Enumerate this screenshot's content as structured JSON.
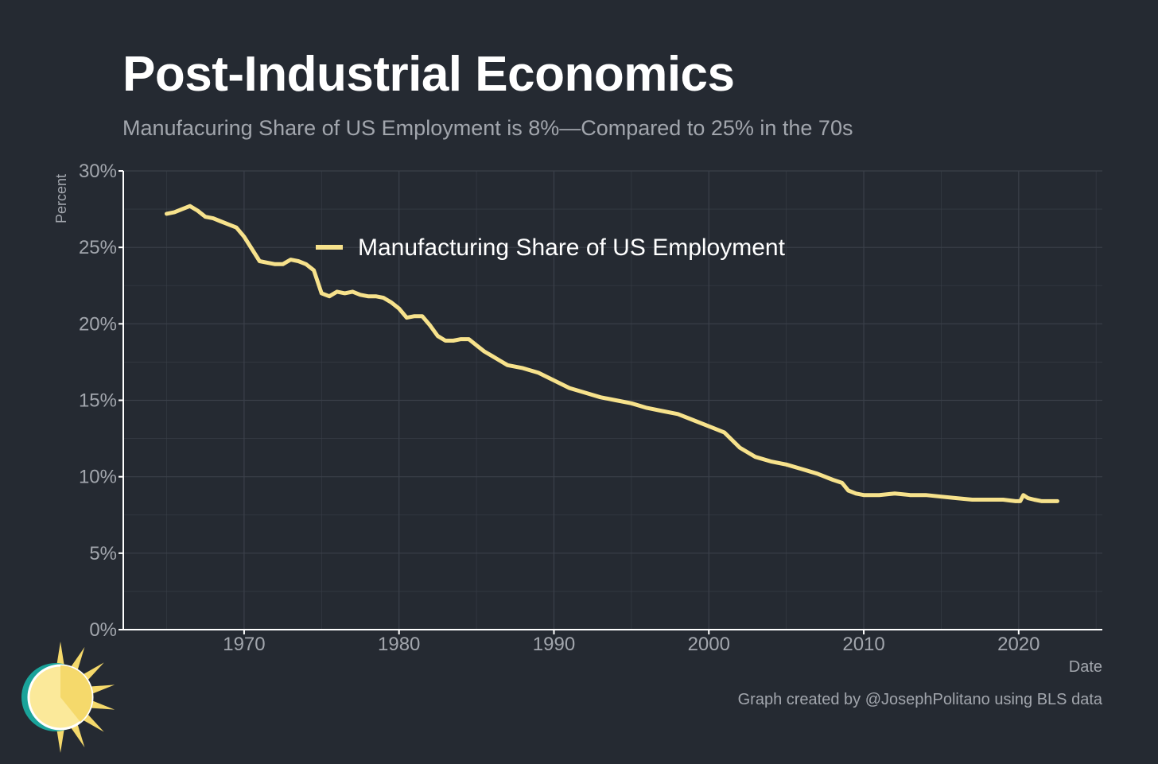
{
  "title": "Post-Industrial Economics",
  "subtitle": "Manufacuring Share of US Employment is 8%—Compared to 25% in the 70s",
  "credit": "Graph created by @JosephPolitano using BLS data",
  "logo_icon": "sun-icon",
  "colors": {
    "background": "#252a32",
    "line": "#f7e28c",
    "grid": "#3b404a",
    "axis": "#ffffff",
    "text_muted": "#a2a6ad",
    "logo_teal": "#1aa39a",
    "logo_yellow": "#f5d96b"
  },
  "chart_data": {
    "type": "line",
    "xlabel": "Date",
    "ylabel": "Percent",
    "xlim": [
      1962.2,
      2025.4
    ],
    "ylim": [
      0,
      30
    ],
    "x_ticks": [
      1970,
      1980,
      1990,
      2000,
      2010,
      2020
    ],
    "x_tick_labels": [
      "1970",
      "1980",
      "1990",
      "2000",
      "2010",
      "2020"
    ],
    "y_ticks": [
      0,
      5,
      10,
      15,
      20,
      25,
      30
    ],
    "y_tick_labels": [
      "0%",
      "5%",
      "10%",
      "15%",
      "20%",
      "25%",
      "30%"
    ],
    "grid": true,
    "legend_position": "top-center",
    "series": [
      {
        "name": "Manufacturing Share of US Employment",
        "x": [
          1965.0,
          1965.5,
          1966.0,
          1966.5,
          1967.0,
          1967.5,
          1968.0,
          1968.5,
          1969.0,
          1969.5,
          1970.0,
          1970.5,
          1971.0,
          1971.5,
          1972.0,
          1972.5,
          1973.0,
          1973.5,
          1974.0,
          1974.5,
          1975.0,
          1975.5,
          1976.0,
          1976.5,
          1977.0,
          1977.5,
          1978.0,
          1978.5,
          1979.0,
          1979.5,
          1980.0,
          1980.5,
          1981.0,
          1981.5,
          1982.0,
          1982.5,
          1983.0,
          1983.5,
          1984.0,
          1984.5,
          1985.0,
          1985.5,
          1986.0,
          1986.5,
          1987.0,
          1987.5,
          1988.0,
          1989.0,
          1990.0,
          1991.0,
          1992.0,
          1993.0,
          1994.0,
          1995.0,
          1996.0,
          1997.0,
          1998.0,
          1999.0,
          2000.0,
          2001.0,
          2002.0,
          2003.0,
          2004.0,
          2005.0,
          2006.0,
          2007.0,
          2008.0,
          2008.6,
          2009.0,
          2009.5,
          2010.0,
          2011.0,
          2012.0,
          2013.0,
          2014.0,
          2015.0,
          2016.0,
          2017.0,
          2018.0,
          2019.0,
          2019.8,
          2020.1,
          2020.3,
          2020.6,
          2021.0,
          2021.5,
          2022.0,
          2022.5
        ],
        "values": [
          27.2,
          27.3,
          27.5,
          27.7,
          27.4,
          27.0,
          26.9,
          26.7,
          26.5,
          26.3,
          25.7,
          24.9,
          24.1,
          24.0,
          23.9,
          23.9,
          24.2,
          24.1,
          23.9,
          23.5,
          22.0,
          21.8,
          22.1,
          22.0,
          22.1,
          21.9,
          21.8,
          21.8,
          21.7,
          21.4,
          21.0,
          20.4,
          20.5,
          20.5,
          19.9,
          19.2,
          18.9,
          18.9,
          19.0,
          19.0,
          18.6,
          18.2,
          17.9,
          17.6,
          17.3,
          17.2,
          17.1,
          16.8,
          16.3,
          15.8,
          15.5,
          15.2,
          15.0,
          14.8,
          14.5,
          14.3,
          14.1,
          13.7,
          13.3,
          12.9,
          11.9,
          11.3,
          11.0,
          10.8,
          10.5,
          10.2,
          9.8,
          9.6,
          9.1,
          8.9,
          8.8,
          8.8,
          8.9,
          8.8,
          8.8,
          8.7,
          8.6,
          8.5,
          8.5,
          8.5,
          8.4,
          8.4,
          8.8,
          8.6,
          8.5,
          8.4,
          8.4,
          8.4
        ]
      }
    ]
  }
}
